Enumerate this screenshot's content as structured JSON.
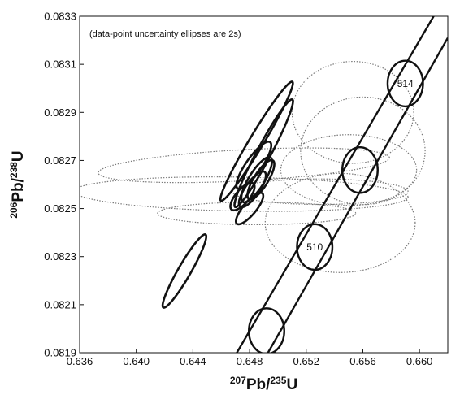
{
  "chart_data": {
    "type": "scatter",
    "subtype": "U-Pb concordia diagram with error ellipses",
    "title": "",
    "annotation": "(data-point uncertainty ellipses are 2s)",
    "xlabel": {
      "mass": "207",
      "element": "Pb",
      "slash": "/",
      "mass2": "235",
      "element2": "U"
    },
    "ylabel": {
      "mass": "206",
      "element": "Pb",
      "slash": "/",
      "mass2": "238",
      "element2": "U"
    },
    "xlim": [
      0.636,
      0.662
    ],
    "ylim": [
      0.0819,
      0.0833
    ],
    "xticks": [
      0.636,
      0.64,
      0.644,
      0.648,
      0.652,
      0.656,
      0.66
    ],
    "xtick_labels": [
      "0.636",
      "0.640",
      "0.644",
      "0.648",
      "0.652",
      "0.656",
      "0.660"
    ],
    "yticks": [
      0.0819,
      0.0821,
      0.0823,
      0.0825,
      0.0827,
      0.0829,
      0.0831,
      0.0833
    ],
    "ytick_labels": [
      "0.0819",
      "0.0821",
      "0.0823",
      "0.0825",
      "0.0827",
      "0.0829",
      "0.0831",
      "0.0833"
    ],
    "grid": false,
    "concordia_band": {
      "left_line": [
        [
          0.6471,
          0.0819
        ],
        [
          0.661,
          0.0833
        ]
      ],
      "right_line": [
        [
          0.6493,
          0.0819
        ],
        [
          0.662,
          0.08321
        ]
      ]
    },
    "age_markers": [
      {
        "label": "",
        "cx": 0.6492,
        "cy": 0.08199,
        "rx": 0.00125,
        "ry": 9.5e-05
      },
      {
        "label": "510",
        "cx": 0.6526,
        "cy": 0.08234,
        "rx": 0.00125,
        "ry": 9.5e-05
      },
      {
        "label": "",
        "cx": 0.6558,
        "cy": 0.08266,
        "rx": 0.00125,
        "ry": 9.5e-05
      },
      {
        "label": "514",
        "cx": 0.659,
        "cy": 0.08302,
        "rx": 0.00125,
        "ry": 9.5e-05
      }
    ],
    "series": [
      {
        "style": "solid",
        "ellipses": [
          {
            "cx": 0.6434,
            "cy": 0.08224,
            "a": 0.00298,
            "b": 0.00045,
            "angle_deg": 60
          },
          {
            "cx": 0.6485,
            "cy": 0.08278,
            "a": 0.0049,
            "b": 0.0005,
            "angle_deg": 59
          },
          {
            "cx": 0.649,
            "cy": 0.08273,
            "a": 0.0043,
            "b": 0.0005,
            "angle_deg": 62
          },
          {
            "cx": 0.6483,
            "cy": 0.08268,
            "a": 0.002,
            "b": 0.00055,
            "angle_deg": 55
          },
          {
            "cx": 0.6485,
            "cy": 0.08262,
            "a": 0.00185,
            "b": 0.00055,
            "angle_deg": 58
          },
          {
            "cx": 0.6482,
            "cy": 0.08258,
            "a": 0.0015,
            "b": 0.0005,
            "angle_deg": 55
          },
          {
            "cx": 0.6488,
            "cy": 0.08262,
            "a": 0.0016,
            "b": 0.0005,
            "angle_deg": 58
          },
          {
            "cx": 0.6475,
            "cy": 0.08255,
            "a": 0.0012,
            "b": 0.00048,
            "angle_deg": 50
          },
          {
            "cx": 0.648,
            "cy": 0.0825,
            "a": 0.0014,
            "b": 0.00045,
            "angle_deg": 50
          }
        ]
      },
      {
        "style": "dotted",
        "ellipses": [
          {
            "cx": 0.6476,
            "cy": 0.08268,
            "a": 0.0103,
            "b": 0.0011,
            "angle_deg": 3
          },
          {
            "cx": 0.6474,
            "cy": 0.08256,
            "a": 0.0118,
            "b": 0.0012,
            "angle_deg": -1
          },
          {
            "cx": 0.6485,
            "cy": 0.08248,
            "a": 0.007,
            "b": 0.0008,
            "angle_deg": 0
          },
          {
            "cx": 0.653,
            "cy": 0.08257,
            "a": 0.0062,
            "b": 0.0009,
            "angle_deg": 0
          },
          {
            "cx": 0.656,
            "cy": 0.08274,
            "a": 0.0044,
            "b": 0.0038,
            "angle_deg": 0
          },
          {
            "cx": 0.6553,
            "cy": 0.0829,
            "a": 0.0043,
            "b": 0.0036,
            "angle_deg": 0
          },
          {
            "cx": 0.6544,
            "cy": 0.08244,
            "a": 0.0053,
            "b": 0.0035,
            "angle_deg": 0
          },
          {
            "cx": 0.655,
            "cy": 0.08266,
            "a": 0.0048,
            "b": 0.0025,
            "angle_deg": 0
          }
        ]
      }
    ]
  }
}
